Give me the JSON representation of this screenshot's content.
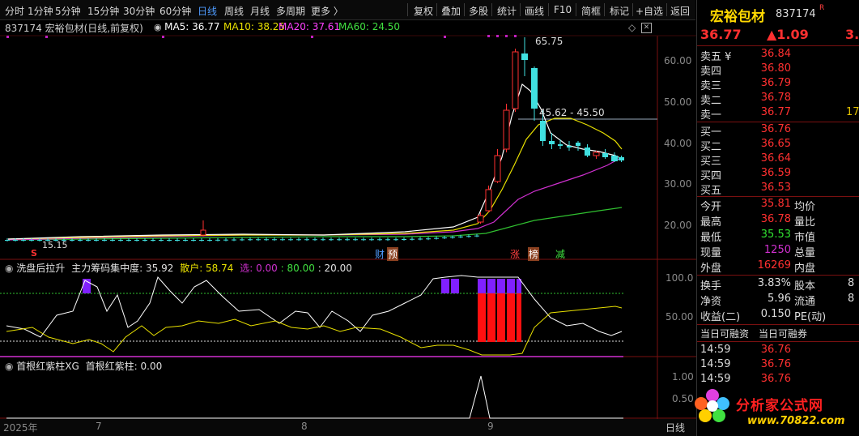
{
  "toolbar": {
    "periods": [
      "分时",
      "1分钟",
      "5分钟",
      "15分钟",
      "30分钟",
      "60分钟",
      "日线",
      "周线",
      "月线",
      "多周期",
      "更多 〉"
    ],
    "active_period": "日线",
    "actions": [
      "复权",
      "叠加",
      "多股",
      "统计",
      "画线",
      "F10",
      "简框",
      "标记",
      "+自选",
      "返回"
    ]
  },
  "chart_header": {
    "stock": "837174 宏裕包材(日线,前复权)",
    "ma5": "MA5: 36.77",
    "ma10": "MA10: 38.25",
    "ma20": "MA20: 37.61",
    "ma60": "MA60: 24.50"
  },
  "price_axis": [
    "60.00",
    "50.00",
    "40.00",
    "30.00",
    "20.00"
  ],
  "annotations": {
    "high": "65.75",
    "range": "45.62 - 45.50",
    "low": "15.15",
    "s_marker": "S",
    "tags": [
      "财",
      "预",
      "涨",
      "榜",
      "减"
    ]
  },
  "indicator1": {
    "name": "洗盘后拉升",
    "text": "主力筹码集中度: 35.92",
    "sanhu": "散户: 58.74",
    "xuan": "选: 0.00",
    "v80": ": 80.00",
    "v20": ": 20.00",
    "axis": [
      "100.0",
      "50.00"
    ]
  },
  "indicator2": {
    "name": "首根红紫柱XG",
    "text": "首根红紫柱: 0.00",
    "axis": [
      "1.00",
      "0.50"
    ]
  },
  "date_axis": {
    "labels": [
      "2025年",
      "7",
      "8",
      "9"
    ],
    "period": "日线"
  },
  "quote": {
    "name": "宏裕包材",
    "code": "837174",
    "mark": "R",
    "price": "36.77",
    "change": "▲1.09",
    "edge": "3.",
    "asks": [
      {
        "label": "卖五 ¥",
        "price": "36.84"
      },
      {
        "label": "卖四",
        "price": "36.80"
      },
      {
        "label": "卖三",
        "price": "36.79"
      },
      {
        "label": "卖二",
        "price": "36.78"
      },
      {
        "label": "卖一",
        "price": "36.77",
        "edge": "17"
      }
    ],
    "bids": [
      {
        "label": "买一",
        "price": "36.76"
      },
      {
        "label": "买二",
        "price": "36.65"
      },
      {
        "label": "买三",
        "price": "36.64"
      },
      {
        "label": "买四",
        "price": "36.59"
      },
      {
        "label": "买五",
        "price": "36.53"
      }
    ],
    "stats": [
      {
        "l": "今开",
        "v": "35.81",
        "l2": "均价"
      },
      {
        "l": "最高",
        "v": "36.78",
        "l2": "量比"
      },
      {
        "l": "最低",
        "v": "35.53",
        "l2": "市值"
      },
      {
        "l": "现量",
        "v": "1250",
        "l2": "总量"
      },
      {
        "l": "外盘",
        "v": "16269",
        "l2": "内盘"
      }
    ],
    "stats2": [
      {
        "l": "换手",
        "v": "3.83%",
        "l2": "股本",
        "e": "8"
      },
      {
        "l": "净资",
        "v": "5.96",
        "l2": "流通",
        "e": "8"
      },
      {
        "l": "收益(二)",
        "v": "0.150",
        "l2": "PE(动)"
      }
    ],
    "rzrq": [
      "当日可融资",
      "当日可融券"
    ],
    "ticks": [
      {
        "t": "14:59",
        "p": "36.76"
      },
      {
        "t": "14:59",
        "p": "36.76"
      },
      {
        "t": "14:59",
        "p": "36.76"
      }
    ]
  },
  "watermark": {
    "text": "分析家公式网",
    "url": "www.70822.com"
  }
}
